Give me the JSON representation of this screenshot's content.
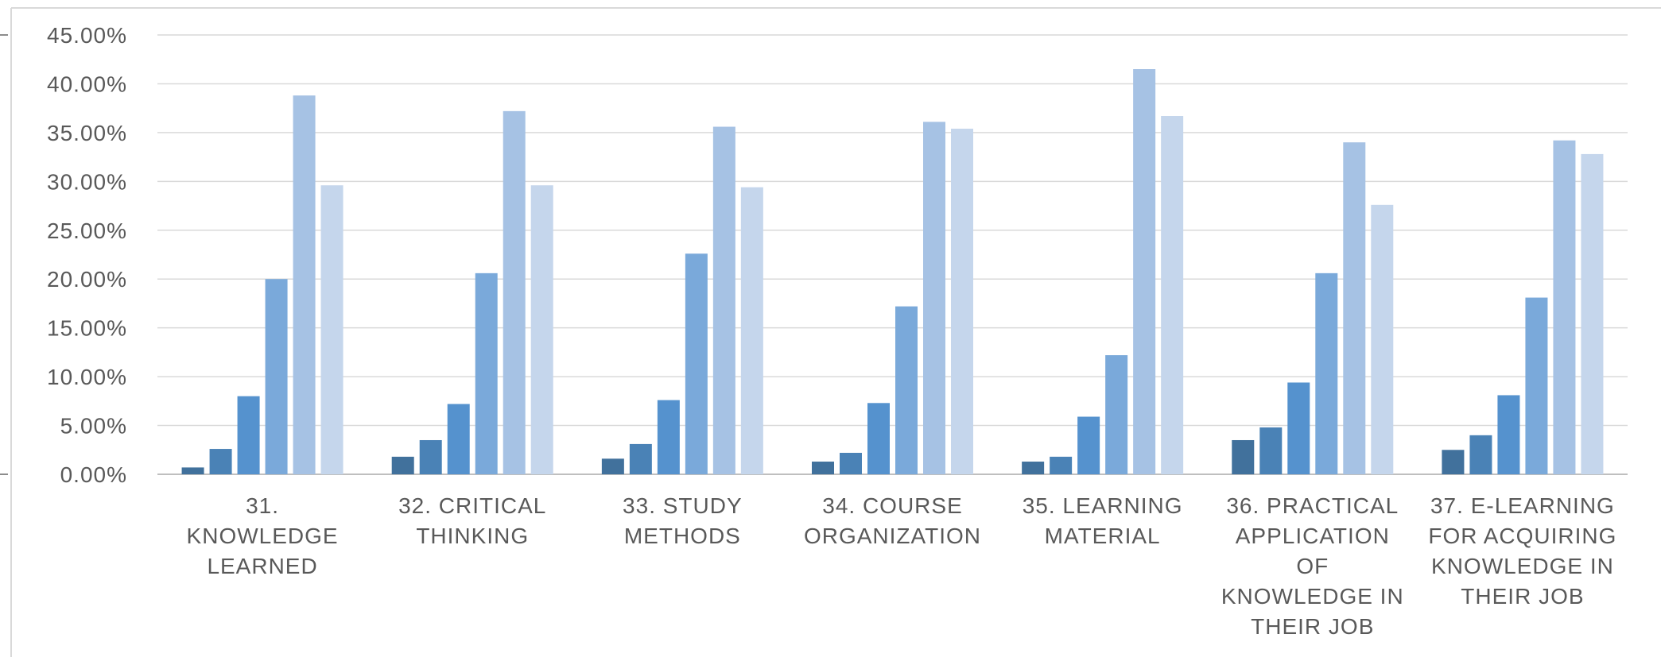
{
  "chart_data": {
    "type": "bar",
    "categories": [
      [
        "31.",
        "KNOWLEDGE",
        "LEARNED"
      ],
      [
        "32. CRITICAL",
        "THINKING"
      ],
      [
        "33. STUDY",
        "METHODS"
      ],
      [
        "34. COURSE",
        "ORGANIZATION"
      ],
      [
        "35. LEARNING",
        "MATERIAL"
      ],
      [
        "36. PRACTICAL",
        "APPLICATION",
        "OF",
        "KNOWLEDGE IN",
        "THEIR JOB"
      ],
      [
        "37. E-LEARNING",
        "FOR ACQUIRING",
        "KNOWLEDGE IN",
        "THEIR JOB"
      ]
    ],
    "series": [
      {
        "color": "#41719C",
        "values": [
          0.7,
          1.8,
          1.6,
          1.3,
          1.3,
          3.5,
          2.5
        ]
      },
      {
        "color": "#4A82B6",
        "values": [
          2.6,
          3.5,
          3.1,
          2.2,
          1.8,
          4.8,
          4.0
        ]
      },
      {
        "color": "#5592CE",
        "values": [
          8.0,
          7.2,
          7.6,
          7.3,
          5.9,
          9.4,
          8.1
        ]
      },
      {
        "color": "#7AA9DA",
        "values": [
          20.0,
          20.6,
          22.6,
          17.2,
          12.2,
          20.6,
          18.1
        ]
      },
      {
        "color": "#A6C2E4",
        "values": [
          38.8,
          37.2,
          35.6,
          36.1,
          41.5,
          34.0,
          34.2
        ]
      },
      {
        "color": "#C5D6EC",
        "values": [
          29.6,
          29.6,
          29.4,
          35.4,
          36.7,
          27.6,
          32.8
        ]
      }
    ],
    "ylim": [
      0,
      45
    ],
    "yticks": [
      0,
      5,
      10,
      15,
      20,
      25,
      30,
      35,
      40,
      45
    ],
    "ytick_labels": [
      "0.00%",
      "5.00%",
      "10.00%",
      "15.00%",
      "20.00%",
      "25.00%",
      "30.00%",
      "35.00%",
      "40.00%",
      "45.00%"
    ],
    "grid": true,
    "gridColor": "#D9D9D9",
    "axisColor": "#BFBFBF",
    "legend": "none"
  }
}
